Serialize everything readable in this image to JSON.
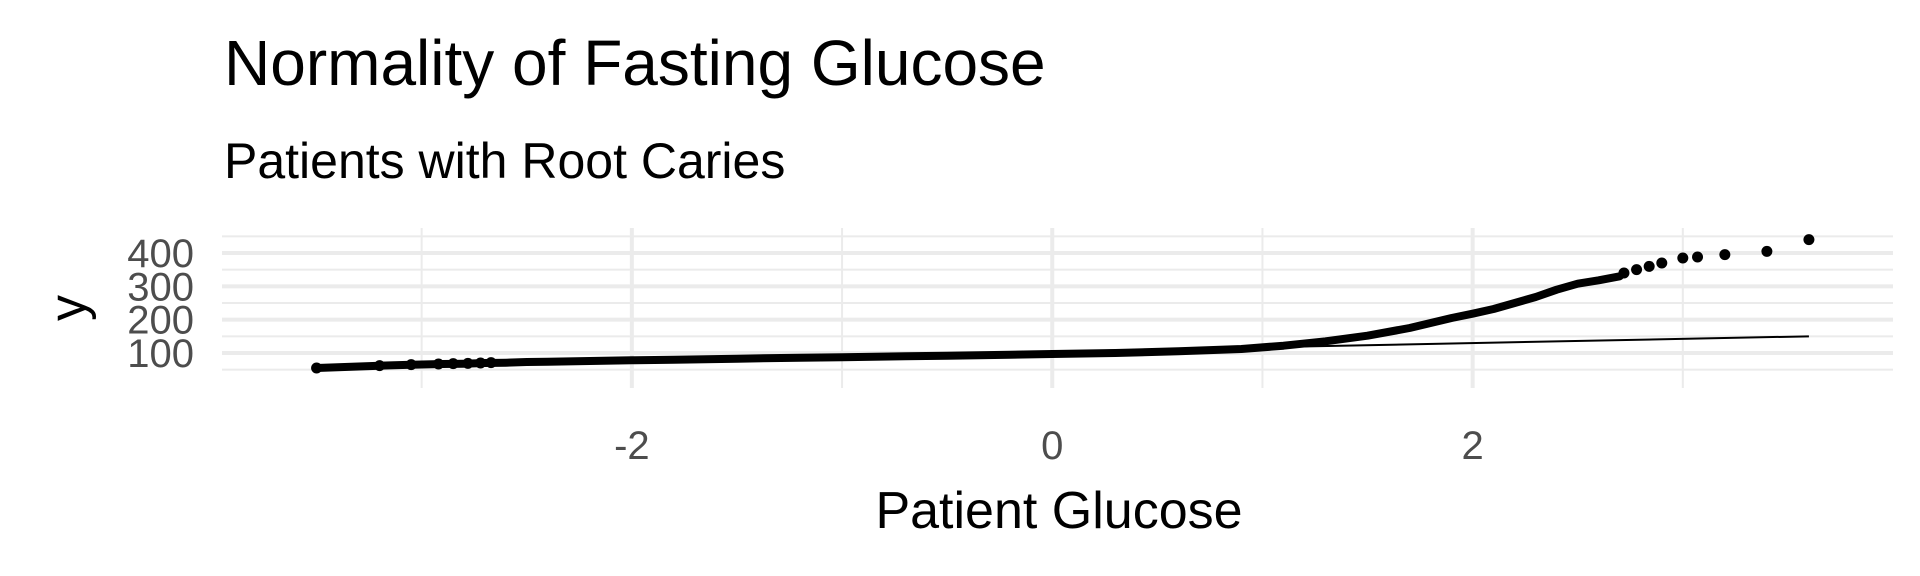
{
  "chart_data": {
    "type": "scatter",
    "title": "Normality of Fasting Glucose",
    "subtitle": "Patients with Root Caries",
    "xlabel": "Patient Glucose",
    "ylabel": "y",
    "xlim": [
      -3.95,
      4.0
    ],
    "ylim": [
      -5,
      475
    ],
    "x_ticks": [
      -2,
      0,
      2
    ],
    "x_tick_labels": [
      "-2",
      "0",
      "2"
    ],
    "y_ticks": [
      100,
      200,
      300,
      400
    ],
    "y_tick_labels": [
      "100",
      "200",
      "300",
      "400"
    ],
    "grid": true,
    "sample_curve": [
      [
        -3.5,
        55
      ],
      [
        -3.2,
        62
      ],
      [
        -3.05,
        65
      ],
      [
        -2.9,
        67
      ],
      [
        -2.8,
        68
      ],
      [
        -2.7,
        70
      ],
      [
        -2.6,
        71
      ],
      [
        -2.5,
        73
      ],
      [
        -2.4,
        74
      ],
      [
        -2.2,
        76
      ],
      [
        -2.0,
        78
      ],
      [
        -1.8,
        80
      ],
      [
        -1.5,
        83
      ],
      [
        -1.2,
        86
      ],
      [
        -1.0,
        87
      ],
      [
        -0.7,
        90
      ],
      [
        -0.5,
        92
      ],
      [
        -0.2,
        95
      ],
      [
        0.0,
        97
      ],
      [
        0.3,
        100
      ],
      [
        0.6,
        105
      ],
      [
        0.9,
        112
      ],
      [
        1.1,
        122
      ],
      [
        1.3,
        135
      ],
      [
        1.5,
        152
      ],
      [
        1.7,
        175
      ],
      [
        1.9,
        205
      ],
      [
        2.0,
        218
      ],
      [
        2.1,
        232
      ],
      [
        2.2,
        250
      ],
      [
        2.3,
        268
      ],
      [
        2.4,
        290
      ],
      [
        2.5,
        308
      ],
      [
        2.6,
        318
      ],
      [
        2.7,
        330
      ]
    ],
    "isolated_points": [
      [
        -3.5,
        55
      ],
      [
        -3.2,
        62
      ],
      [
        -3.05,
        65
      ],
      [
        -2.92,
        67
      ],
      [
        -2.85,
        68
      ],
      [
        -2.78,
        69
      ],
      [
        -2.72,
        70
      ],
      [
        -2.67,
        71
      ],
      [
        2.72,
        340
      ],
      [
        2.78,
        350
      ],
      [
        2.84,
        360
      ],
      [
        2.9,
        370
      ],
      [
        3.0,
        385
      ],
      [
        3.07,
        388
      ],
      [
        3.2,
        395
      ],
      [
        3.4,
        405
      ],
      [
        3.6,
        440
      ]
    ],
    "reference_line": {
      "x": [
        -3.5,
        3.6
      ],
      "y": [
        60,
        150
      ]
    }
  }
}
